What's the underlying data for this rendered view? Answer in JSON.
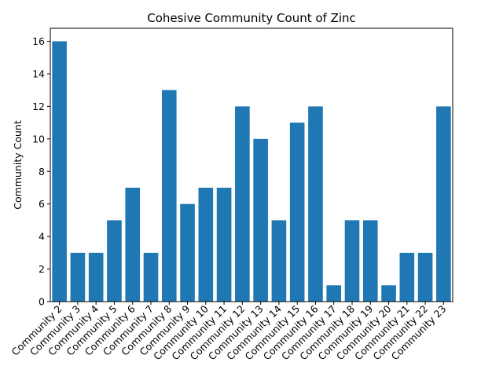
{
  "chart_data": {
    "type": "bar",
    "title": "Cohesive Community Count of Zinc",
    "xlabel": "",
    "ylabel": "Community Count",
    "categories": [
      "Community 2",
      "Community 3",
      "Community 4",
      "Community 5",
      "Community 6",
      "Community 7",
      "Community 8",
      "Community 9",
      "Community 10",
      "Community 11",
      "Community 12",
      "Community 13",
      "Community 14",
      "Community 15",
      "Community 16",
      "Community 17",
      "Community 18",
      "Community 19",
      "Community 20",
      "Community 21",
      "Community 22",
      "Community 23"
    ],
    "values": [
      16,
      3,
      3,
      5,
      7,
      3,
      13,
      6,
      7,
      7,
      12,
      10,
      5,
      11,
      12,
      1,
      5,
      5,
      1,
      3,
      3,
      12
    ],
    "ylim": [
      0,
      16.8
    ],
    "yticks": [
      0,
      2,
      4,
      6,
      8,
      10,
      12,
      14,
      16
    ],
    "grid": false,
    "legend": false,
    "bar_color": "#1f77b4"
  }
}
